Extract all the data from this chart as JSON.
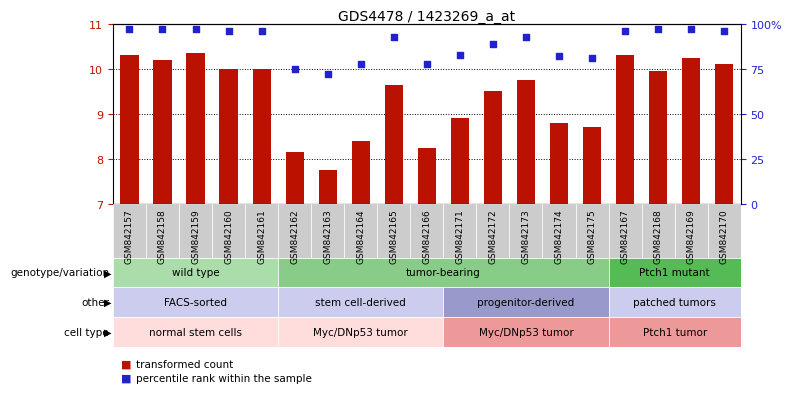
{
  "title": "GDS4478 / 1423269_a_at",
  "samples": [
    "GSM842157",
    "GSM842158",
    "GSM842159",
    "GSM842160",
    "GSM842161",
    "GSM842162",
    "GSM842163",
    "GSM842164",
    "GSM842165",
    "GSM842166",
    "GSM842171",
    "GSM842172",
    "GSM842173",
    "GSM842174",
    "GSM842175",
    "GSM842167",
    "GSM842168",
    "GSM842169",
    "GSM842170"
  ],
  "bar_values": [
    10.3,
    10.2,
    10.35,
    10.0,
    10.0,
    8.15,
    7.75,
    8.4,
    9.65,
    8.25,
    8.9,
    9.5,
    9.75,
    8.8,
    8.7,
    10.3,
    9.95,
    10.25,
    10.1
  ],
  "dot_values": [
    97,
    97,
    97,
    96,
    96,
    75,
    72,
    78,
    93,
    78,
    83,
    89,
    93,
    82,
    81,
    96,
    97,
    97,
    96
  ],
  "ylim_left": [
    7,
    11
  ],
  "ylim_right": [
    0,
    100
  ],
  "yticks_left": [
    7,
    8,
    9,
    10,
    11
  ],
  "yticks_right": [
    0,
    25,
    50,
    75,
    100
  ],
  "bar_color": "#bb1100",
  "dot_color": "#2222cc",
  "grid_color": "#000000",
  "row_genotype": [
    {
      "label": "wild type",
      "start": 0,
      "end": 5,
      "color": "#aaddaa"
    },
    {
      "label": "tumor-bearing",
      "start": 5,
      "end": 15,
      "color": "#88cc88"
    },
    {
      "label": "Ptch1 mutant",
      "start": 15,
      "end": 19,
      "color": "#55bb55"
    }
  ],
  "row_other": [
    {
      "label": "FACS-sorted",
      "start": 0,
      "end": 5,
      "color": "#ccccee"
    },
    {
      "label": "stem cell-derived",
      "start": 5,
      "end": 10,
      "color": "#ccccee"
    },
    {
      "label": "progenitor-derived",
      "start": 10,
      "end": 15,
      "color": "#9999cc"
    },
    {
      "label": "patched tumors",
      "start": 15,
      "end": 19,
      "color": "#ccccee"
    }
  ],
  "row_celltype": [
    {
      "label": "normal stem cells",
      "start": 0,
      "end": 5,
      "color": "#ffdddd"
    },
    {
      "label": "Myc/DNp53 tumor",
      "start": 5,
      "end": 10,
      "color": "#ffdddd"
    },
    {
      "label": "Myc/DNp53 tumor",
      "start": 10,
      "end": 15,
      "color": "#ee9999"
    },
    {
      "label": "Ptch1 tumor",
      "start": 15,
      "end": 19,
      "color": "#ee9999"
    }
  ],
  "row_labels": [
    "genotype/variation",
    "other",
    "cell type"
  ],
  "legend_bar_label": "transformed count",
  "legend_dot_label": "percentile rank within the sample",
  "xtick_bg": "#cccccc"
}
